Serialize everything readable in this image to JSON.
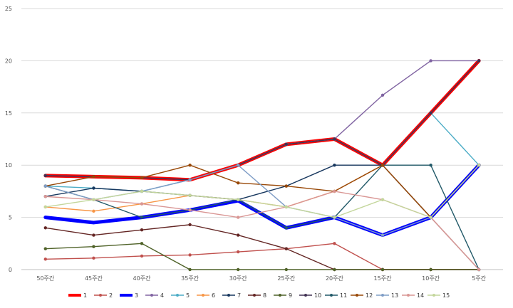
{
  "chart_data": {
    "type": "line",
    "title": "",
    "xlabel": "",
    "ylabel": "",
    "ylim": [
      0,
      25
    ],
    "yticks": [
      0,
      5,
      10,
      15,
      20,
      25
    ],
    "grid": "horizontal",
    "legend": "bottom",
    "categories": [
      "50주간",
      "45주간",
      "40주간",
      "35주간",
      "30주간",
      "25주간",
      "20주간",
      "15주간",
      "10주간",
      "5주간"
    ],
    "series": [
      {
        "name": "1",
        "color": "#FF0000",
        "bold": true,
        "values": [
          9,
          8.9,
          8.8,
          8.6,
          10,
          12,
          12.5,
          10,
          15,
          20
        ]
      },
      {
        "name": "2",
        "color": "#C0504D",
        "values": [
          1,
          1.1,
          1.3,
          1.4,
          1.7,
          2,
          2.5,
          0,
          0,
          0
        ]
      },
      {
        "name": "3",
        "color": "#0000FF",
        "bold": true,
        "values": [
          5,
          4.5,
          5,
          5.7,
          6.6,
          4,
          5,
          3.3,
          5,
          10
        ]
      },
      {
        "name": "4",
        "color": "#8064A2",
        "values": [
          9,
          8.9,
          8.8,
          8.6,
          10,
          12,
          12.5,
          16.7,
          20,
          20
        ]
      },
      {
        "name": "5",
        "color": "#4BACC6",
        "values": [
          8,
          7.8,
          7.5,
          8.6,
          10,
          12,
          12.5,
          10,
          15,
          10
        ]
      },
      {
        "name": "6",
        "color": "#F79646",
        "values": [
          6,
          5.6,
          6.3,
          7.1,
          6.7,
          6,
          7.5,
          10,
          5,
          0
        ]
      },
      {
        "name": "7",
        "color": "#17375E",
        "values": [
          7,
          7.8,
          7.5,
          7.1,
          6.7,
          8,
          10,
          10,
          5,
          10
        ]
      },
      {
        "name": "8",
        "color": "#632523",
        "values": [
          4,
          3.3,
          3.8,
          4.3,
          3.3,
          2,
          0,
          0,
          0,
          0
        ]
      },
      {
        "name": "9",
        "color": "#4F6228",
        "values": [
          2,
          2.2,
          2.5,
          0,
          0,
          0,
          0,
          0,
          0,
          0
        ]
      },
      {
        "name": "10",
        "color": "#403152",
        "values": [
          9,
          8.9,
          8.8,
          8.6,
          10,
          12,
          12.5,
          10,
          15,
          20
        ]
      },
      {
        "name": "11",
        "color": "#215968",
        "values": [
          8,
          6.7,
          5,
          5.7,
          6.7,
          4,
          5,
          10,
          10,
          0
        ]
      },
      {
        "name": "12",
        "color": "#984807",
        "values": [
          8,
          8.9,
          8.8,
          10,
          8.3,
          8,
          7.5,
          10,
          5,
          10
        ]
      },
      {
        "name": "13",
        "color": "#7F9DC6",
        "values": [
          8,
          6.7,
          7.5,
          8.6,
          10,
          6,
          5,
          3.3,
          5,
          0
        ]
      },
      {
        "name": "14",
        "color": "#D99694",
        "values": [
          7,
          6.7,
          6.3,
          5.7,
          5,
          6,
          7.5,
          6.7,
          5,
          0
        ]
      },
      {
        "name": "15",
        "color": "#C3D69B",
        "values": [
          6,
          6.7,
          7.5,
          7.1,
          6.7,
          6,
          5,
          6.7,
          5,
          10
        ]
      }
    ]
  }
}
